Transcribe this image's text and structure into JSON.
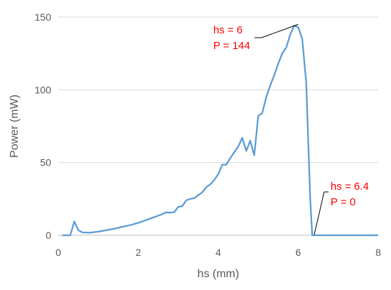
{
  "chart_data": {
    "type": "line",
    "title": "",
    "xlabel": "hs (mm)",
    "ylabel": "Power (mW)",
    "xlim": [
      0,
      8
    ],
    "ylim": [
      0,
      150
    ],
    "x_ticks": [
      0,
      2,
      4,
      6,
      8
    ],
    "y_ticks": [
      0,
      50,
      100,
      150
    ],
    "grid": "horizontal",
    "legend": "none",
    "colors": {
      "series": "#5b9bd5",
      "gridline": "#d9d9d9",
      "axis": "#bfbfbf",
      "text": "#595959",
      "annotation": "#ff0000",
      "callout_line": "#000000"
    },
    "series": [
      {
        "x": [
          0.1,
          0.3,
          0.4,
          0.5,
          0.6,
          0.8,
          1.0,
          1.2,
          1.4,
          1.6,
          1.8,
          2.0,
          2.2,
          2.4,
          2.6,
          2.7,
          2.8,
          2.9,
          3.0,
          3.1,
          3.2,
          3.3,
          3.4,
          3.5,
          3.6,
          3.7,
          3.8,
          3.9,
          4.0,
          4.1,
          4.2,
          4.3,
          4.4,
          4.5,
          4.6,
          4.7,
          4.8,
          4.9,
          5.0,
          5.1,
          5.2,
          5.3,
          5.4,
          5.5,
          5.6,
          5.7,
          5.8,
          5.9,
          6.0,
          6.1,
          6.2,
          6.3,
          6.35,
          6.4,
          6.5,
          7.0,
          7.5,
          8.0
        ],
        "y": [
          0,
          0,
          9.5,
          3.5,
          2,
          1.8,
          2.5,
          3.5,
          4.5,
          5.8,
          7,
          8.5,
          10.5,
          12.5,
          14.5,
          15.8,
          15.5,
          16,
          19.5,
          20,
          24,
          25,
          25.5,
          27.5,
          29.5,
          33,
          35,
          38,
          42,
          48.5,
          48.5,
          53,
          57,
          61,
          67,
          58,
          65,
          55,
          82,
          84,
          95,
          103,
          110,
          118,
          125,
          129,
          138,
          144,
          143,
          135,
          105,
          25,
          0,
          0,
          0,
          0,
          0,
          0
        ]
      }
    ],
    "annotations": [
      {
        "lines": [
          "hs = 6",
          "P = 144"
        ],
        "target": [
          6.0,
          144
        ]
      },
      {
        "lines": [
          "hs = 6.4",
          "P = 0"
        ],
        "target": [
          6.4,
          0
        ]
      }
    ]
  }
}
